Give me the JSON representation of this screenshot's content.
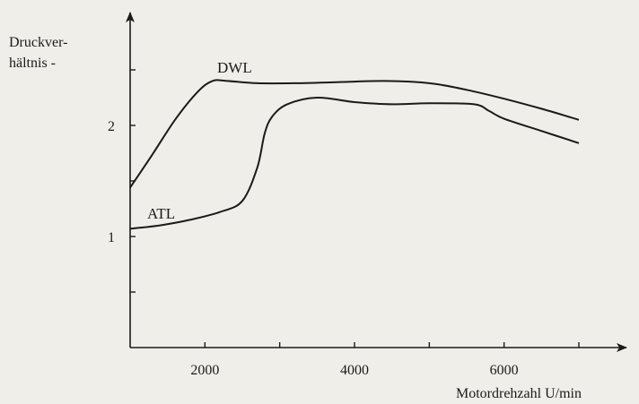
{
  "chart_data": {
    "type": "line",
    "title": "",
    "ylabel_line1": "Druckver-",
    "ylabel_line2": "hältnis  -",
    "xlabel": "Motordrehzahl  U/min",
    "xlim": [
      1000,
      7000
    ],
    "ylim": [
      0,
      3
    ],
    "x_ticks": [
      1000,
      2000,
      3000,
      4000,
      5000,
      6000,
      7000
    ],
    "x_tick_labels": [
      "",
      "2000",
      "",
      "4000",
      "",
      "6000",
      ""
    ],
    "y_ticks": [
      0.5,
      1,
      1.5,
      2,
      2.5
    ],
    "y_tick_labels": [
      "",
      "1",
      "",
      "2",
      ""
    ],
    "grid": false,
    "series": [
      {
        "name": "DWL",
        "x": [
          1000,
          1300,
          1600,
          1900,
          2100,
          2300,
          2700,
          3200,
          3800,
          4400,
          5000,
          5500,
          6000,
          6500,
          7000
        ],
        "y": [
          1.44,
          1.74,
          2.05,
          2.3,
          2.4,
          2.4,
          2.38,
          2.38,
          2.39,
          2.4,
          2.38,
          2.32,
          2.24,
          2.15,
          2.05
        ]
      },
      {
        "name": "ATL",
        "x": [
          1000,
          1400,
          1800,
          2200,
          2500,
          2700,
          2800,
          2900,
          3100,
          3500,
          4000,
          4500,
          5000,
          5600,
          5800,
          6000,
          6500,
          7000
        ],
        "y": [
          1.07,
          1.1,
          1.15,
          1.22,
          1.32,
          1.62,
          1.93,
          2.08,
          2.19,
          2.25,
          2.21,
          2.19,
          2.2,
          2.19,
          2.13,
          2.06,
          1.95,
          1.84
        ]
      }
    ],
    "annotations": [
      "DWL",
      "ATL"
    ]
  }
}
